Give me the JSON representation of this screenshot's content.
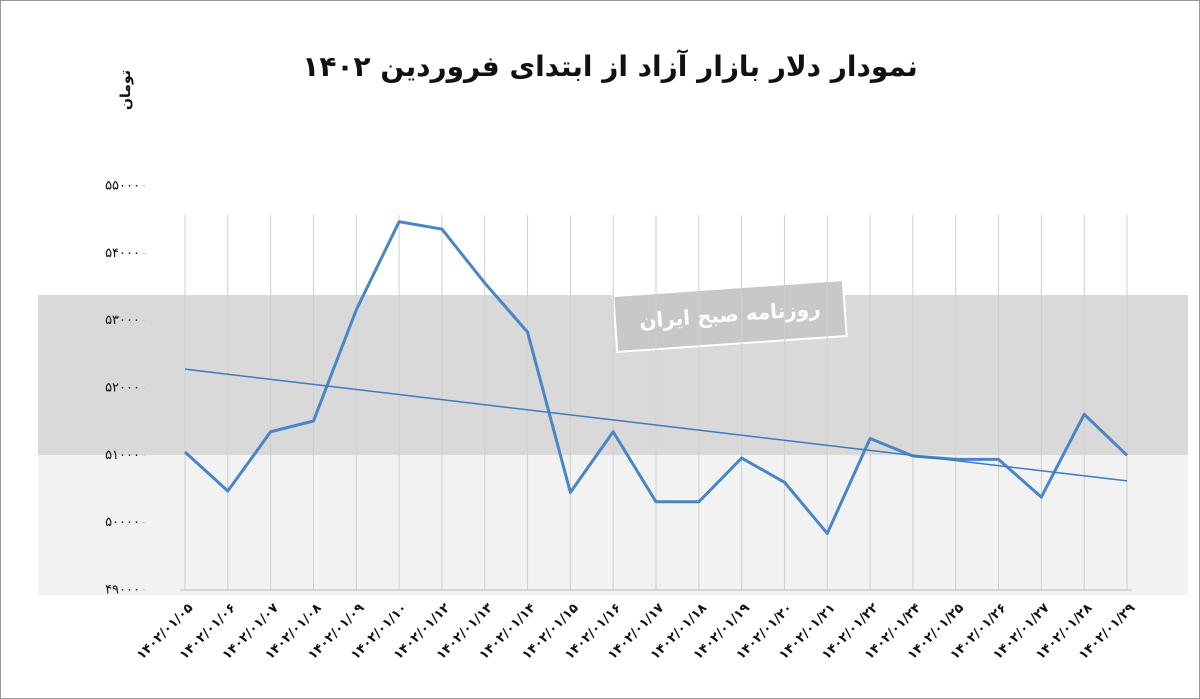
{
  "chart_data": {
    "type": "line",
    "title": "نمودار دلار بازار آزاد از ابتدای فروردین ۱۴۰۲",
    "y_label": "تومان",
    "watermark": "روزنامه صبح ایران",
    "categories": [
      "۱۴۰۲/۰۱/۰۵",
      "۱۴۰۲/۰۱/۰۶",
      "۱۴۰۲/۰۱/۰۷",
      "۱۴۰۲/۰۱/۰۸",
      "۱۴۰۲/۰۱/۰۹",
      "۱۴۰۲/۰۱/۱۰",
      "۱۴۰۲/۰۱/۱۲",
      "۱۴۰۲/۰۱/۱۳",
      "۱۴۰۲/۰۱/۱۴",
      "۱۴۰۲/۰۱/۱۵",
      "۱۴۰۲/۰۱/۱۶",
      "۱۴۰۲/۰۱/۱۷",
      "۱۴۰۲/۰۱/۱۸",
      "۱۴۰۲/۰۱/۱۹",
      "۱۴۰۲/۰۱/۲۰",
      "۱۴۰۲/۰۱/۲۱",
      "۱۴۰۲/۰۱/۲۲",
      "۱۴۰۲/۰۱/۲۴",
      "۱۴۰۲/۰۱/۲۵",
      "۱۴۰۲/۰۱/۲۶",
      "۱۴۰۲/۰۱/۲۷",
      "۱۴۰۲/۰۱/۲۸",
      "۱۴۰۲/۰۱/۲۹"
    ],
    "series": [
      {
        "color": "#4a86c5",
        "values": [
          51050,
          50470,
          51350,
          51510,
          53160,
          54470,
          54360,
          53560,
          52830,
          50450,
          51350,
          50310,
          50310,
          50960,
          50600,
          49840,
          51250,
          50990,
          50940,
          50940,
          50380,
          51610,
          51000
        ]
      }
    ],
    "trendline": {
      "color": "#3b7bbf",
      "values": [
        52280,
        50620
      ]
    },
    "ylim": [
      49000,
      55000
    ],
    "yticks": [
      {
        "value": 49000,
        "label": "۴۹۰۰۰"
      },
      {
        "value": 50000,
        "label": "۵۰۰۰۰"
      },
      {
        "value": 51000,
        "label": "۵۱۰۰۰"
      },
      {
        "value": 52000,
        "label": "۵۲۰۰۰"
      },
      {
        "value": 53000,
        "label": "۵۳۰۰۰"
      },
      {
        "value": 54000,
        "label": "۵۴۰۰۰"
      },
      {
        "value": 55000,
        "label": "۵۵۰۰۰"
      }
    ]
  }
}
